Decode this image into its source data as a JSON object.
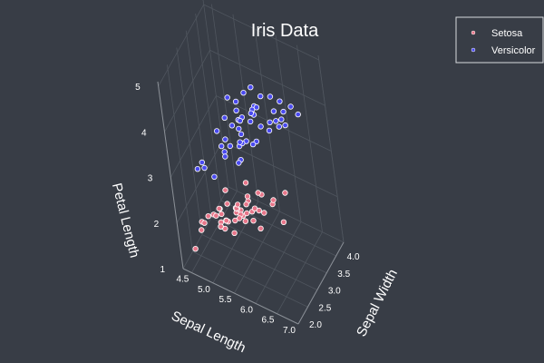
{
  "chart_data": {
    "type": "scatter",
    "variant": "3d",
    "title": "Iris Data",
    "axes": {
      "x": {
        "label": "Sepal Length",
        "ticks": [
          4.5,
          5.0,
          5.5,
          6.0,
          6.5,
          7.0
        ],
        "tick_labels": [
          "4.5",
          "5.0",
          "5.5",
          "6.0",
          "6.5",
          "7.0"
        ],
        "range": [
          4.3,
          7.0
        ]
      },
      "y": {
        "label": "Sepal Width",
        "ticks": [
          2.0,
          2.5,
          3.0,
          3.5,
          4.0
        ],
        "tick_labels": [
          "2.0",
          "2.5",
          "3.0",
          "3.5",
          "4.0"
        ],
        "range": [
          2.0,
          4.4
        ]
      },
      "z": {
        "label": "Petal Length",
        "ticks": [
          1,
          2,
          3,
          4,
          5
        ],
        "tick_labels": [
          "1",
          "2",
          "3",
          "4",
          "5"
        ],
        "range": [
          1.0,
          5.1
        ]
      }
    },
    "grid": true,
    "legend_position": "top-right",
    "series": [
      {
        "name": "Setosa",
        "color": "#e8768a",
        "points": [
          [
            5.1,
            3.5,
            1.4
          ],
          [
            4.9,
            3.0,
            1.4
          ],
          [
            4.7,
            3.2,
            1.3
          ],
          [
            4.6,
            3.1,
            1.5
          ],
          [
            5.0,
            3.6,
            1.4
          ],
          [
            5.4,
            3.9,
            1.7
          ],
          [
            4.6,
            3.4,
            1.4
          ],
          [
            5.0,
            3.4,
            1.5
          ],
          [
            4.4,
            2.9,
            1.4
          ],
          [
            4.9,
            3.1,
            1.5
          ],
          [
            5.4,
            3.7,
            1.5
          ],
          [
            4.8,
            3.4,
            1.6
          ],
          [
            4.8,
            3.0,
            1.4
          ],
          [
            4.3,
            3.0,
            1.1
          ],
          [
            5.8,
            4.0,
            1.2
          ],
          [
            5.7,
            4.4,
            1.5
          ],
          [
            5.4,
            3.9,
            1.3
          ],
          [
            5.1,
            3.5,
            1.4
          ],
          [
            5.7,
            3.8,
            1.7
          ],
          [
            5.1,
            3.8,
            1.5
          ],
          [
            5.4,
            3.4,
            1.7
          ],
          [
            5.1,
            3.7,
            1.5
          ],
          [
            4.6,
            3.6,
            1.0
          ],
          [
            5.1,
            3.3,
            1.7
          ],
          [
            4.8,
            3.4,
            1.9
          ],
          [
            5.0,
            3.0,
            1.6
          ],
          [
            5.0,
            3.4,
            1.6
          ],
          [
            5.2,
            3.5,
            1.5
          ],
          [
            5.2,
            3.4,
            1.4
          ],
          [
            4.7,
            3.2,
            1.6
          ],
          [
            4.8,
            3.1,
            1.6
          ],
          [
            5.4,
            3.4,
            1.5
          ],
          [
            5.2,
            4.1,
            1.5
          ],
          [
            5.5,
            4.2,
            1.4
          ],
          [
            4.9,
            3.1,
            1.5
          ],
          [
            5.0,
            3.2,
            1.2
          ],
          [
            5.5,
            3.5,
            1.3
          ],
          [
            4.9,
            3.6,
            1.4
          ],
          [
            4.4,
            3.0,
            1.3
          ],
          [
            5.1,
            3.4,
            1.5
          ],
          [
            5.0,
            3.5,
            1.3
          ],
          [
            4.5,
            2.3,
            1.3
          ],
          [
            4.4,
            3.2,
            1.3
          ],
          [
            5.0,
            3.5,
            1.6
          ],
          [
            5.1,
            3.8,
            1.9
          ],
          [
            4.8,
            3.0,
            1.4
          ],
          [
            5.1,
            3.8,
            1.6
          ],
          [
            4.6,
            3.2,
            1.4
          ],
          [
            5.3,
            3.7,
            1.5
          ],
          [
            5.0,
            3.3,
            1.4
          ]
        ]
      },
      {
        "name": "Versicolor",
        "color": "#4a4af0",
        "points": [
          [
            7.0,
            3.2,
            4.7
          ],
          [
            6.4,
            3.2,
            4.5
          ],
          [
            6.9,
            3.1,
            4.9
          ],
          [
            5.5,
            2.3,
            4.0
          ],
          [
            6.5,
            2.8,
            4.6
          ],
          [
            5.7,
            2.8,
            4.5
          ],
          [
            6.3,
            3.3,
            4.7
          ],
          [
            4.9,
            2.4,
            3.3
          ],
          [
            6.6,
            2.9,
            4.6
          ],
          [
            5.2,
            2.7,
            3.9
          ],
          [
            5.0,
            2.0,
            3.5
          ],
          [
            5.9,
            3.0,
            4.2
          ],
          [
            6.0,
            2.2,
            4.0
          ],
          [
            6.1,
            2.9,
            4.7
          ],
          [
            5.6,
            2.9,
            3.6
          ],
          [
            6.7,
            3.1,
            4.4
          ],
          [
            5.6,
            3.0,
            4.5
          ],
          [
            5.8,
            2.7,
            4.1
          ],
          [
            6.2,
            2.2,
            4.5
          ],
          [
            5.6,
            2.5,
            3.9
          ],
          [
            5.9,
            3.2,
            4.8
          ],
          [
            6.1,
            2.8,
            4.0
          ],
          [
            6.3,
            2.5,
            4.9
          ],
          [
            6.1,
            2.8,
            4.7
          ],
          [
            6.4,
            2.9,
            4.3
          ],
          [
            6.6,
            3.0,
            4.4
          ],
          [
            6.8,
            2.8,
            4.8
          ],
          [
            6.7,
            3.0,
            5.0
          ],
          [
            6.0,
            2.9,
            4.5
          ],
          [
            5.7,
            2.6,
            3.5
          ],
          [
            5.5,
            2.4,
            3.8
          ],
          [
            5.5,
            2.4,
            3.7
          ],
          [
            5.8,
            2.7,
            3.9
          ],
          [
            6.0,
            2.7,
            5.1
          ],
          [
            5.4,
            3.0,
            4.5
          ],
          [
            6.0,
            3.4,
            4.5
          ],
          [
            6.7,
            3.1,
            4.7
          ],
          [
            6.3,
            2.3,
            4.4
          ],
          [
            5.6,
            3.0,
            4.1
          ],
          [
            5.5,
            2.5,
            4.0
          ],
          [
            5.5,
            2.6,
            4.4
          ],
          [
            6.1,
            3.0,
            4.6
          ],
          [
            5.8,
            2.6,
            4.0
          ],
          [
            5.0,
            2.3,
            3.3
          ],
          [
            5.6,
            2.7,
            4.2
          ],
          [
            5.7,
            3.0,
            4.2
          ],
          [
            5.7,
            2.9,
            4.2
          ],
          [
            6.2,
            2.9,
            4.3
          ],
          [
            5.1,
            2.5,
            3.0
          ],
          [
            5.7,
            2.8,
            4.1
          ]
        ]
      }
    ]
  }
}
